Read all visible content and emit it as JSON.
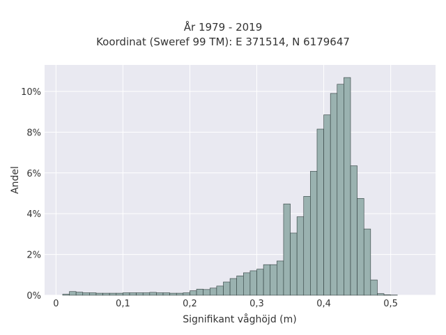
{
  "chart_data": {
    "type": "bar",
    "title": "År 1979 - 2019",
    "subtitle": "Koordinat (Sweref 99 TM): E 371514, N 6179647",
    "xlabel": "Signifikant våghöjd (m)",
    "ylabel": "Andel",
    "xlim": [
      -0.017,
      0.567
    ],
    "ylim": [
      0,
      11.3
    ],
    "x_ticks": [
      0,
      0.1,
      0.2,
      0.3,
      0.4,
      0.5
    ],
    "x_tick_labels": [
      "0",
      "0,1",
      "0,2",
      "0,3",
      "0,4",
      "0,5"
    ],
    "y_ticks": [
      0,
      2,
      4,
      6,
      8,
      10
    ],
    "y_tick_labels": [
      "0%",
      "2%",
      "4%",
      "6%",
      "8%",
      "10%"
    ],
    "bin_width": 0.01,
    "bin_start": 0.01,
    "values": [
      0.05,
      0.18,
      0.15,
      0.12,
      0.12,
      0.1,
      0.1,
      0.1,
      0.1,
      0.12,
      0.12,
      0.12,
      0.12,
      0.14,
      0.12,
      0.12,
      0.1,
      0.1,
      0.12,
      0.22,
      0.3,
      0.28,
      0.35,
      0.45,
      0.65,
      0.82,
      0.95,
      1.1,
      1.2,
      1.28,
      1.5,
      1.5,
      1.68,
      4.48,
      3.05,
      3.85,
      4.85,
      6.08,
      8.15,
      8.85,
      9.9,
      10.35,
      10.68,
      6.35,
      4.75,
      3.25,
      0.75,
      0.08,
      0.02,
      0.01
    ],
    "grid": true,
    "colors": {
      "bar_fill": "#9ab2b0",
      "bar_stroke": "#2f3d3c",
      "plot_background": "#e9e9f1",
      "grid": "#ffffff",
      "text": "#333333"
    }
  }
}
